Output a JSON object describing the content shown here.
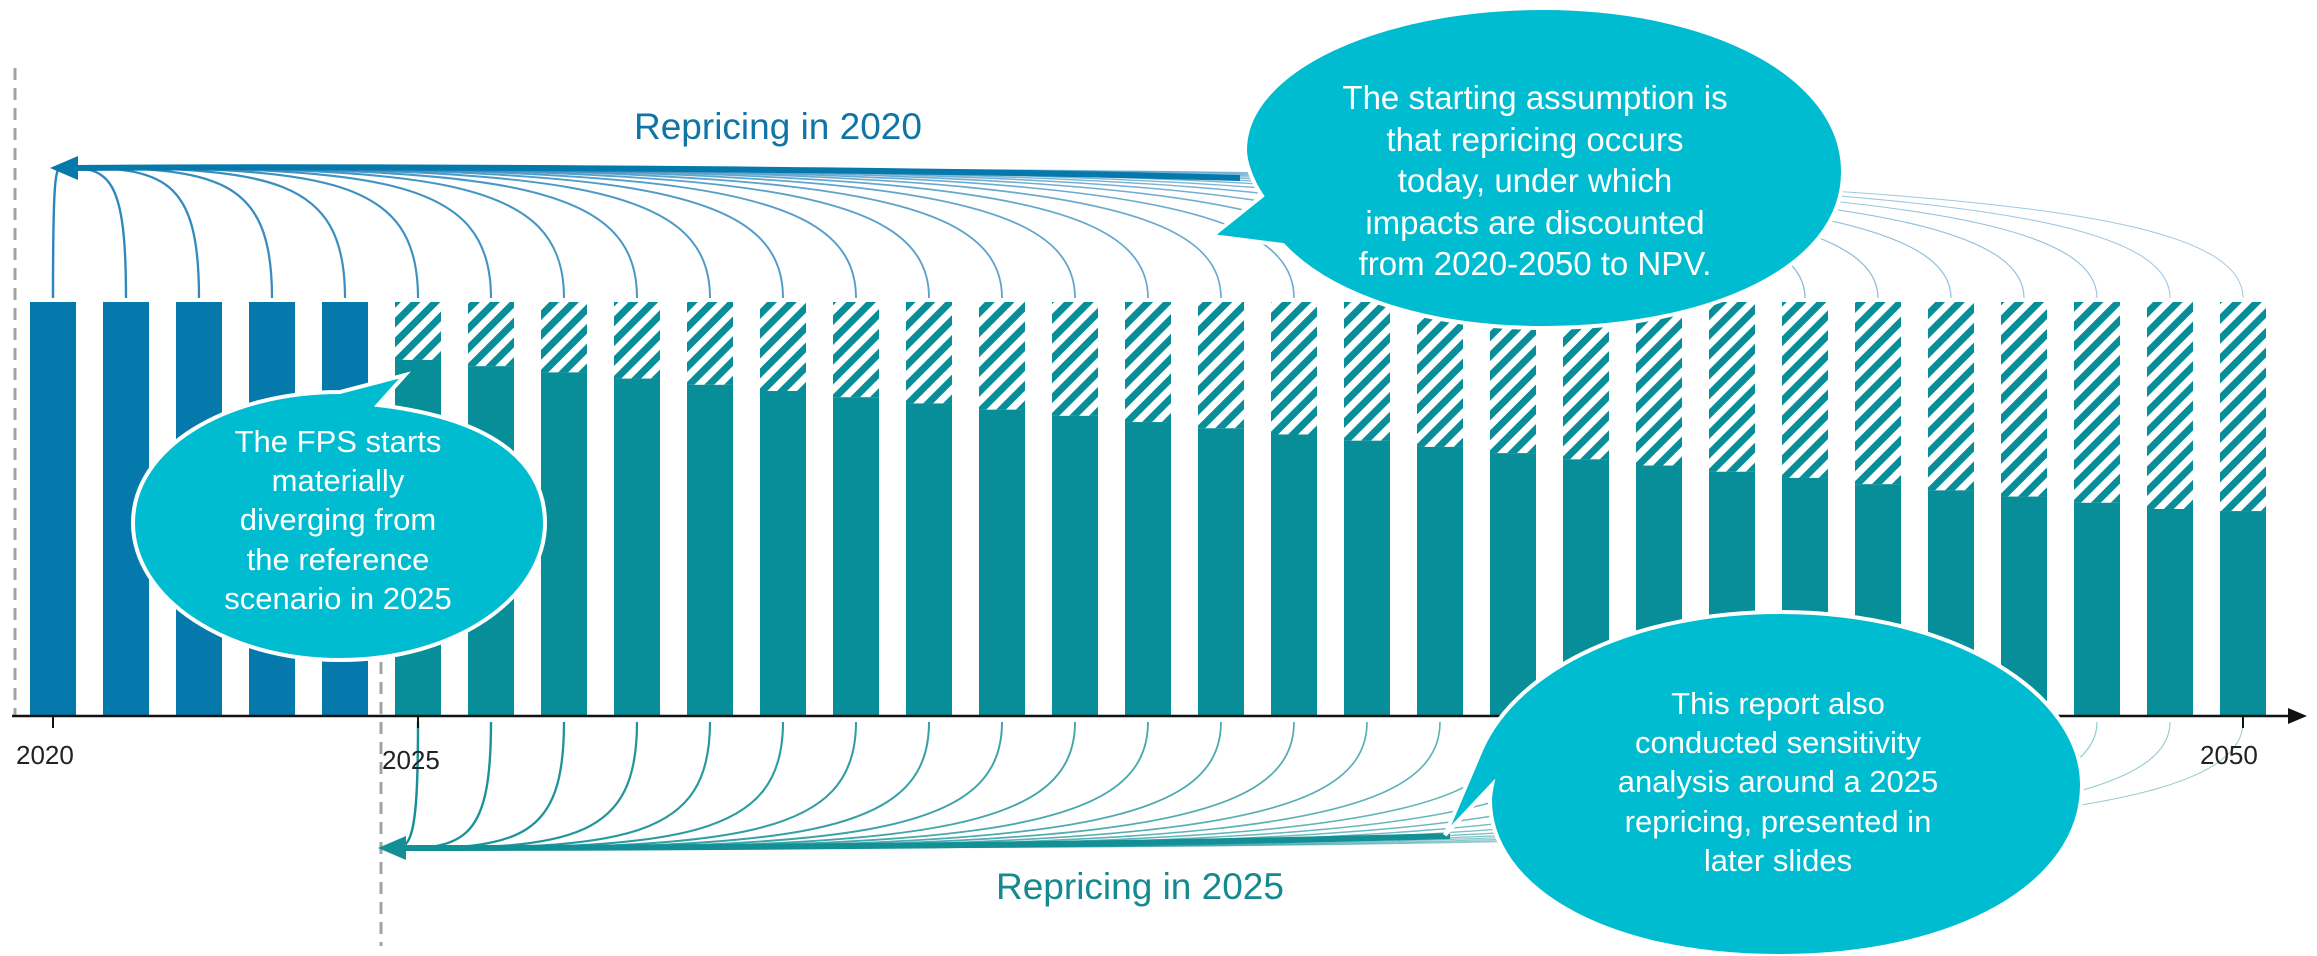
{
  "colors": {
    "bar_2020": "#0578ac",
    "bar_2025": "#078e99",
    "bubble": "#00bcd1",
    "hatch": "#078e99",
    "arc_2020": "#2a86bb",
    "arc_2025": "#138f96",
    "axis": "#111111",
    "divider": "#a3a3a3"
  },
  "labels": {
    "top": "Repricing in 2020",
    "bottom": "Repricing in 2025"
  },
  "axis": {
    "ticks": [
      "2020",
      "2025",
      "2050"
    ]
  },
  "bubbles": {
    "top": [
      "The starting assumption is",
      "that repricing occurs",
      "today, under which",
      "impacts are discounted",
      "from 2020-2050 to NPV."
    ],
    "left": [
      "The FPS starts",
      "materially",
      "diverging from",
      "the reference",
      "scenario in 2025"
    ],
    "bottom": [
      "This report also",
      "conducted sensitivity",
      "analysis around a 2025",
      "repricing, presented in",
      "later slides"
    ]
  },
  "chart_data": {
    "type": "bar",
    "years": [
      2020,
      2021,
      2022,
      2023,
      2024,
      2025,
      2026,
      2027,
      2028,
      2029,
      2030,
      2031,
      2032,
      2033,
      2034,
      2035,
      2036,
      2037,
      2038,
      2039,
      2040,
      2041,
      2042,
      2043,
      2044,
      2045,
      2046,
      2047,
      2048,
      2049,
      2050
    ],
    "reference_level": 1.0,
    "series": [
      {
        "values": [
          1.0,
          1.0,
          1.0,
          1.0,
          1.0,
          0.86,
          0.845,
          0.83,
          0.815,
          0.8,
          0.785,
          0.77,
          0.755,
          0.74,
          0.725,
          0.71,
          0.695,
          0.68,
          0.665,
          0.65,
          0.635,
          0.62,
          0.605,
          0.59,
          0.575,
          0.56,
          0.545,
          0.53,
          0.515,
          0.5,
          0.495
        ]
      }
    ]
  }
}
